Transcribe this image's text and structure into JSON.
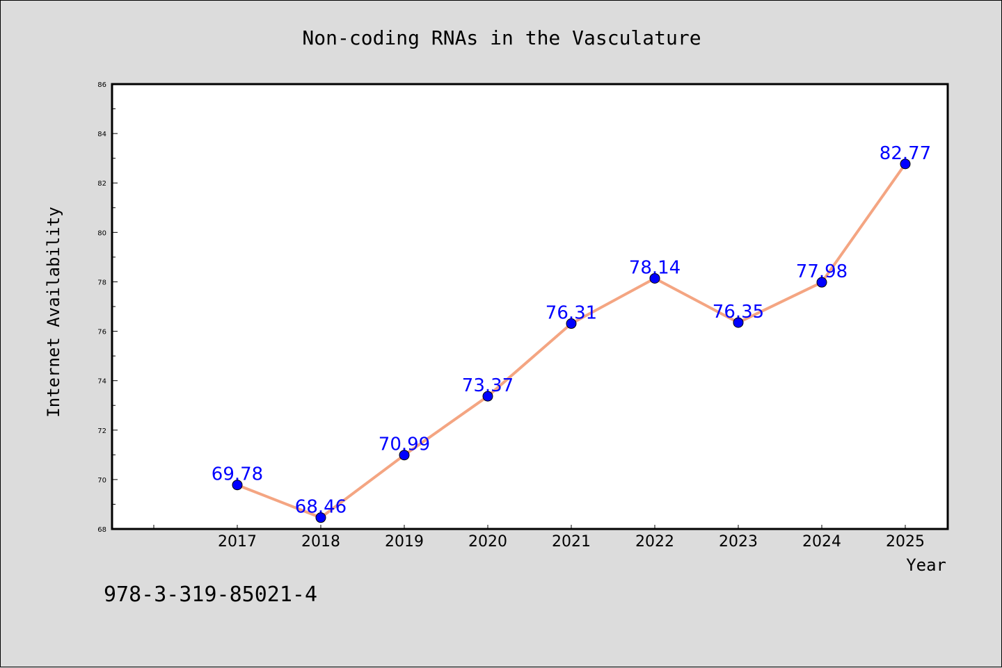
{
  "footer_code": "978-3-319-85021-4",
  "colors": {
    "background": "#dcdcdc",
    "plot_background": "#ffffff",
    "line": "#f4a582",
    "marker": "#0000ff",
    "data_label": "#0000ff"
  },
  "chart_data": {
    "type": "line",
    "title": "Non-coding RNAs in the Vasculature",
    "xlabel": "Year",
    "ylabel": "Internet Availability",
    "categories": [
      "2017",
      "2018",
      "2019",
      "2020",
      "2021",
      "2022",
      "2023",
      "2024",
      "2025"
    ],
    "series": [
      {
        "values": [
          69.78,
          68.46,
          70.99,
          73.37,
          76.31,
          78.14,
          76.35,
          77.98,
          82.77
        ],
        "labels": [
          "69.78",
          "68.46",
          "70.99",
          "73.37",
          "76.31",
          "78.14",
          "76.35",
          "77.98",
          "82.77"
        ]
      }
    ],
    "ylim": [
      68,
      86
    ],
    "yticks": [
      "68",
      "70",
      "72",
      "74",
      "76",
      "78",
      "80",
      "82",
      "84",
      "86"
    ],
    "grid": false,
    "legend": "none"
  }
}
